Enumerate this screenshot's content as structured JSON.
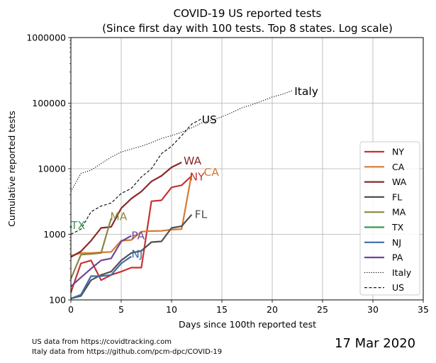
{
  "chart_data": {
    "type": "line",
    "title_line1": "COVID-19 US reported tests",
    "title_line2": "(Since first day with 100 tests. Top 8 states. Log scale)",
    "xlabel": "Days since 100th reported test",
    "ylabel": "Cumulative reported tests",
    "xlim": [
      0,
      35
    ],
    "ylim": [
      100,
      1000000
    ],
    "yscale": "log",
    "grid": true,
    "legend_position": "right",
    "x_ticks": [
      0,
      5,
      10,
      15,
      20,
      25,
      30,
      35
    ],
    "y_ticks": [
      100,
      1000,
      10000,
      100000,
      1000000
    ],
    "y_tick_labels": [
      "100",
      "1000",
      "10000",
      "100000",
      "1000000"
    ],
    "series": [
      {
        "name": "NY",
        "color": "#c83232",
        "style": "solid",
        "end_label": "NY",
        "label_at": [
          11.8,
          7700
        ],
        "x": [
          0,
          1,
          2,
          3,
          4,
          5,
          6,
          7,
          8,
          9,
          10,
          11,
          12
        ],
        "y": [
          130,
          360,
          400,
          200,
          240,
          270,
          310,
          310,
          3200,
          3300,
          5200,
          5600,
          7800
        ]
      },
      {
        "name": "CA",
        "color": "#d67a32",
        "style": "solid",
        "end_label": "CA",
        "label_at": [
          13.2,
          9000
        ],
        "x": [
          0,
          1,
          2,
          3,
          4,
          5,
          6,
          7,
          8,
          9,
          10,
          11,
          12
        ],
        "y": [
          470,
          520,
          520,
          530,
          540,
          800,
          820,
          1100,
          1120,
          1130,
          1180,
          1200,
          8500
        ]
      },
      {
        "name": "WA",
        "color": "#8c2828",
        "style": "solid",
        "end_label": "WA",
        "label_at": [
          11.2,
          13500
        ],
        "x": [
          0,
          1,
          2,
          3,
          4,
          5,
          6,
          7,
          8,
          9,
          10,
          11
        ],
        "y": [
          450,
          550,
          800,
          1250,
          1300,
          2500,
          3500,
          4500,
          6400,
          7800,
          10500,
          12500
        ]
      },
      {
        "name": "FL",
        "color": "#505050",
        "style": "solid",
        "end_label": "FL",
        "label_at": [
          12.3,
          2050
        ],
        "x": [
          0,
          1,
          2,
          3,
          4,
          5,
          6,
          7,
          8,
          9,
          10,
          11,
          12
        ],
        "y": [
          105,
          115,
          200,
          240,
          270,
          400,
          520,
          560,
          760,
          780,
          1250,
          1330,
          2000
        ]
      },
      {
        "name": "MA",
        "color": "#8c8640",
        "style": "solid",
        "end_label": "MA",
        "label_at": [
          3.9,
          1900
        ],
        "x": [
          0,
          1,
          2,
          3,
          4
        ],
        "y": [
          210,
          490,
          500,
          520,
          1750
        ]
      },
      {
        "name": "TX",
        "color": "#3c9650",
        "style": "solid",
        "end_label": "TX",
        "label_at": [
          0,
          1400
        ],
        "x": [
          0
        ],
        "y": [
          1300
        ]
      },
      {
        "name": "NJ",
        "color": "#3c6ca8",
        "style": "solid",
        "end_label": "NJ",
        "label_at": [
          6.0,
          510
        ],
        "x": [
          0,
          1,
          2,
          3,
          4,
          5,
          6
        ],
        "y": [
          105,
          120,
          230,
          230,
          240,
          360,
          460
        ]
      },
      {
        "name": "PA",
        "color": "#6e4696",
        "style": "solid",
        "end_label": "PA",
        "label_at": [
          6.0,
          980
        ],
        "x": [
          0,
          1,
          2,
          3,
          4,
          5,
          6
        ],
        "y": [
          160,
          220,
          300,
          400,
          430,
          780,
          950
        ]
      },
      {
        "name": "Italy",
        "color": "#000000",
        "style": "dotted",
        "end_label": "Italy",
        "label_at": [
          22.2,
          155000
        ],
        "x": [
          0,
          1,
          2,
          3,
          4,
          5,
          6,
          7,
          8,
          9,
          10,
          11,
          12,
          13,
          14,
          15,
          16,
          17,
          18,
          19,
          20,
          21,
          22
        ],
        "y": [
          4500,
          8500,
          9500,
          12000,
          15000,
          18000,
          20000,
          22000,
          25000,
          29000,
          32000,
          36000,
          42000,
          50000,
          55000,
          62000,
          72000,
          85000,
          95000,
          108000,
          124000,
          137000,
          155000
        ]
      },
      {
        "name": "US",
        "color": "#000000",
        "style": "dashed",
        "end_label": "US",
        "label_at": [
          13.0,
          57000
        ],
        "x": [
          0,
          1,
          2,
          3,
          4,
          5,
          6,
          7,
          8,
          9,
          10,
          11,
          12,
          13
        ],
        "y": [
          1000,
          1200,
          2200,
          2700,
          3000,
          4200,
          5000,
          7500,
          10000,
          17000,
          22000,
          32000,
          48000,
          58000
        ]
      }
    ]
  },
  "notes": {
    "line1": "US data from https://covidtracking.com",
    "line2": "Italy data from https://github.com/pcm-dpc/COVID-19"
  },
  "date_stamp": "17 Mar 2020"
}
